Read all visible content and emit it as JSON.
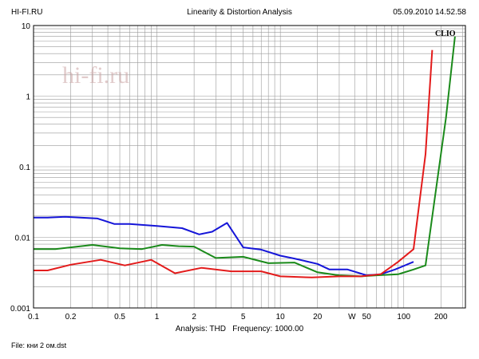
{
  "header": {
    "left": "HI-FI.RU",
    "center": "Linearity & Distortion Analysis",
    "right": "05.09.2010 14.52.58"
  },
  "watermark": "hi-fi.ru",
  "brand": "CLIO",
  "analysis": {
    "label": "Analysis:",
    "type": "THD",
    "freq_label": "Frequency:",
    "frequency": "1000.00"
  },
  "file": {
    "label": "File:",
    "name": "кни 2 ом.dst"
  },
  "colors": {
    "background": "#ffffff",
    "grid": "#9a9a9a",
    "frame": "#000000",
    "red": "#e31b1b",
    "green": "#1a8a1a",
    "blue": "#1515d8"
  },
  "chart_data": {
    "type": "line",
    "title": "Linearity & Distortion Analysis",
    "x_scale": "log",
    "y_scale": "log",
    "xlim": [
      0.1,
      316
    ],
    "ylim": [
      0.001,
      10
    ],
    "grid": true,
    "x_ticks": [
      {
        "v": 0.1,
        "label": "0.1"
      },
      {
        "v": 0.2,
        "label": "0.2"
      },
      {
        "v": 0.5,
        "label": "0.5"
      },
      {
        "v": 1,
        "label": "1"
      },
      {
        "v": 2,
        "label": "2"
      },
      {
        "v": 5,
        "label": "5"
      },
      {
        "v": 10,
        "label": "10"
      },
      {
        "v": 20,
        "label": "20"
      },
      {
        "v": 38,
        "label": "W"
      },
      {
        "v": 50,
        "label": "50"
      },
      {
        "v": 100,
        "label": "100"
      },
      {
        "v": 200,
        "label": "200"
      }
    ],
    "y_ticks": [
      {
        "v": 10,
        "label": "10"
      },
      {
        "v": 1,
        "label": "1"
      },
      {
        "v": 0.1,
        "label": "0.1"
      },
      {
        "v": 0.01,
        "label": "0.01"
      },
      {
        "v": 0.001,
        "label": "0.001"
      }
    ],
    "series": [
      {
        "color": "#1515d8",
        "points": [
          [
            0.1,
            0.019
          ],
          [
            0.13,
            0.019
          ],
          [
            0.18,
            0.0195
          ],
          [
            0.33,
            0.0185
          ],
          [
            0.45,
            0.0155
          ],
          [
            0.6,
            0.0155
          ],
          [
            1,
            0.0145
          ],
          [
            1.6,
            0.0135
          ],
          [
            2.2,
            0.011
          ],
          [
            2.8,
            0.012
          ],
          [
            3.7,
            0.016
          ],
          [
            5,
            0.0072
          ],
          [
            7,
            0.0067
          ],
          [
            10,
            0.0055
          ],
          [
            13,
            0.005
          ],
          [
            20,
            0.0042
          ],
          [
            25,
            0.0035
          ],
          [
            35,
            0.0035
          ],
          [
            50,
            0.0029
          ],
          [
            65,
            0.003
          ],
          [
            85,
            0.0035
          ],
          [
            120,
            0.0045
          ]
        ]
      },
      {
        "color": "#1a8a1a",
        "points": [
          [
            0.1,
            0.0068
          ],
          [
            0.15,
            0.0068
          ],
          [
            0.3,
            0.0078
          ],
          [
            0.5,
            0.007
          ],
          [
            0.75,
            0.0068
          ],
          [
            1.1,
            0.0078
          ],
          [
            1.5,
            0.0075
          ],
          [
            2,
            0.0074
          ],
          [
            3,
            0.0051
          ],
          [
            5,
            0.0053
          ],
          [
            8,
            0.0043
          ],
          [
            13,
            0.0044
          ],
          [
            20,
            0.0032
          ],
          [
            30,
            0.0029
          ],
          [
            45,
            0.0028
          ],
          [
            60,
            0.0029
          ],
          [
            90,
            0.003
          ],
          [
            120,
            0.0035
          ],
          [
            150,
            0.004
          ],
          [
            180,
            0.04
          ],
          [
            220,
            0.5
          ],
          [
            260,
            7
          ]
        ]
      },
      {
        "color": "#e31b1b",
        "points": [
          [
            0.1,
            0.0034
          ],
          [
            0.13,
            0.0034
          ],
          [
            0.2,
            0.0041
          ],
          [
            0.35,
            0.0048
          ],
          [
            0.55,
            0.004
          ],
          [
            0.9,
            0.0048
          ],
          [
            1.4,
            0.0031
          ],
          [
            2.3,
            0.0037
          ],
          [
            4,
            0.0033
          ],
          [
            7,
            0.0033
          ],
          [
            10,
            0.0028
          ],
          [
            18,
            0.0027
          ],
          [
            30,
            0.0028
          ],
          [
            45,
            0.0028
          ],
          [
            65,
            0.003
          ],
          [
            90,
            0.0045
          ],
          [
            120,
            0.0068
          ],
          [
            150,
            0.15
          ],
          [
            170,
            4.5
          ]
        ]
      }
    ]
  }
}
